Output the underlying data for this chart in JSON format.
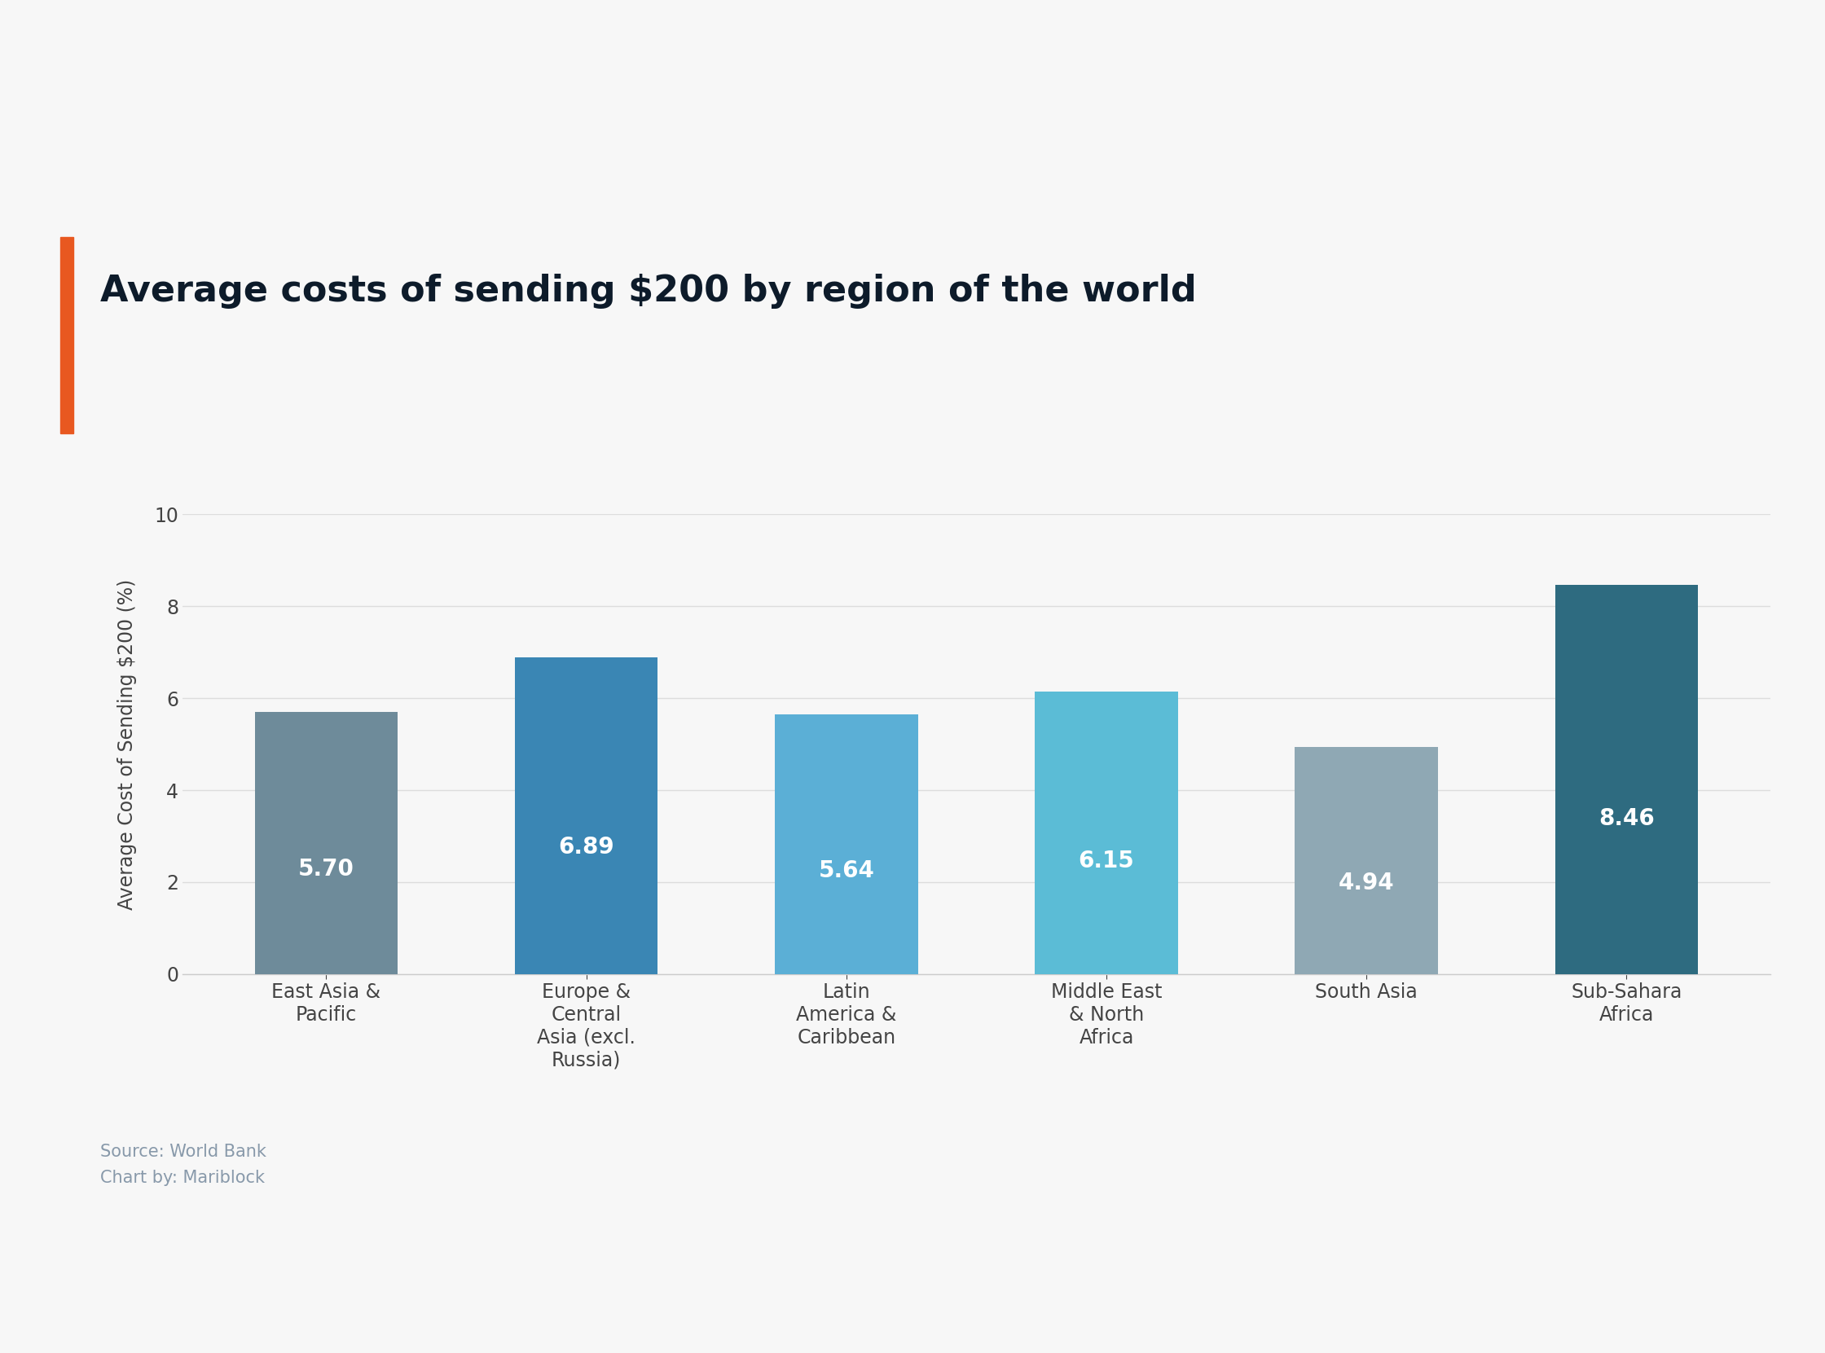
{
  "title": "Average costs of sending $200 by region of the world",
  "title_fontsize": 32,
  "title_color": "#0d1b2a",
  "title_fontweight": "bold",
  "ylabel": "Average Cost of Sending $200 (%)",
  "ylabel_fontsize": 17,
  "ylabel_color": "#444444",
  "categories": [
    "East Asia &\nPacific",
    "Europe &\nCentral\nAsia (excl.\nRussia)",
    "Latin\nAmerica &\nCaribbean",
    "Middle East\n& North\nAfrica",
    "South Asia",
    "Sub-Sahara\nAfrica"
  ],
  "values": [
    5.7,
    6.89,
    5.64,
    6.15,
    4.94,
    8.46
  ],
  "bar_colors": [
    "#6e8b9a",
    "#3a86b4",
    "#5bafd6",
    "#5bbcd6",
    "#8fa8b4",
    "#2e6b80"
  ],
  "value_labels": [
    "5.70",
    "6.89",
    "5.64",
    "6.15",
    "4.94",
    "8.46"
  ],
  "label_color": "#ffffff",
  "label_fontsize": 20,
  "ylim": [
    0,
    10
  ],
  "yticks": [
    0,
    2,
    4,
    6,
    8,
    10
  ],
  "background_color": "#f7f7f7",
  "grid_color": "#dddddd",
  "accent_color": "#e85820",
  "source_text": "Source: World Bank\nChart by: Mariblock",
  "source_color": "#8899aa",
  "source_fontsize": 15,
  "tick_label_fontsize": 17,
  "tick_label_color": "#444444"
}
